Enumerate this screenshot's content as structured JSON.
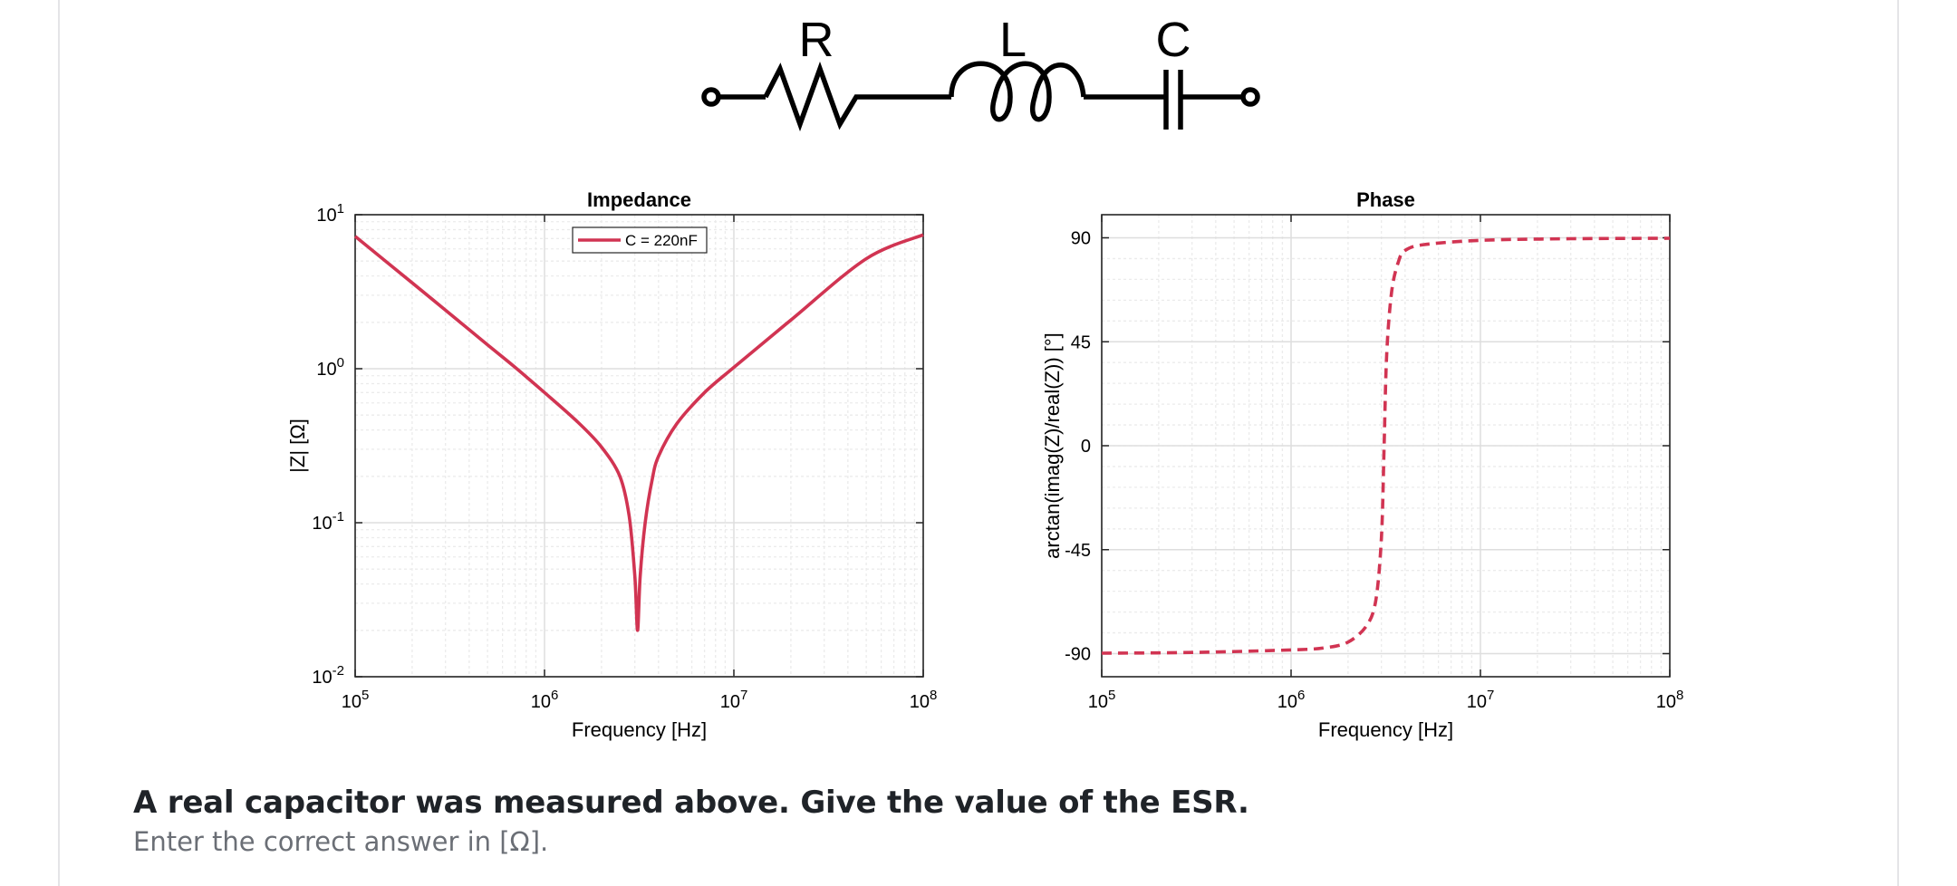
{
  "circuit": {
    "labels": {
      "r": "R",
      "l": "L",
      "c": "C"
    }
  },
  "question": {
    "title": "A real capacitor was measured above. Give the value of the ESR.",
    "hint": "Enter the correct answer in [Ω]."
  },
  "colors": {
    "curve": "#d13452",
    "grid": "#ebebeb",
    "card_border": "#e4e4e7"
  },
  "chart_data": [
    {
      "type": "line",
      "title": "Impedance",
      "xlabel": "Frequency [Hz]",
      "ylabel": "|Z| [Ω]",
      "xscale": "log",
      "yscale": "log",
      "xlim": [
        100000,
        100000000
      ],
      "ylim": [
        0.01,
        10
      ],
      "xticks": [
        "10^5",
        "10^6",
        "10^7",
        "10^8"
      ],
      "yticks": [
        "10^-2",
        "10^-1",
        "10^0",
        "10^1"
      ],
      "grid": true,
      "legend": "top-center",
      "series": [
        {
          "name": "C = 220nF",
          "style": "solid",
          "x": [
            100000,
            200000,
            300000,
            500000,
            700000,
            1000000,
            1500000,
            2000000,
            2500000,
            2800000,
            3000000,
            3100000,
            3200000,
            3400000,
            3700000,
            4000000,
            5000000,
            7000000,
            10000000,
            20000000,
            50000000,
            100000000
          ],
          "y": [
            7.23,
            3.61,
            2.4,
            1.43,
            1.02,
            0.7,
            0.45,
            0.31,
            0.2,
            0.11,
            0.045,
            0.02,
            0.045,
            0.1,
            0.19,
            0.27,
            0.44,
            0.7,
            1.02,
            2.07,
            5.18,
            7.4
          ]
        }
      ]
    },
    {
      "type": "line",
      "title": "Phase",
      "xlabel": "Frequency [Hz]",
      "ylabel": "arctan(imag(Z)/real(Z)) [°]",
      "xscale": "log",
      "xlim": [
        100000,
        100000000
      ],
      "ylim": [
        -100,
        100
      ],
      "xticks": [
        "10^5",
        "10^6",
        "10^7",
        "10^8"
      ],
      "yticks": [
        "-90",
        "-45",
        "0",
        "45",
        "90"
      ],
      "grid": true,
      "series": [
        {
          "style": "dashed",
          "x": [
            100000,
            300000,
            1000000,
            1500000,
            2000000,
            2500000,
            2800000,
            3000000,
            3100000,
            3200000,
            3400000,
            3700000,
            4000000,
            5000000,
            10000000,
            30000000,
            100000000
          ],
          "y": [
            -89.8,
            -89.5,
            -88.4,
            -87.5,
            -85.0,
            -78.0,
            -67.0,
            -40.0,
            0.0,
            40.0,
            67.0,
            80.0,
            84.5,
            87.0,
            88.9,
            89.6,
            89.8
          ]
        }
      ]
    }
  ]
}
